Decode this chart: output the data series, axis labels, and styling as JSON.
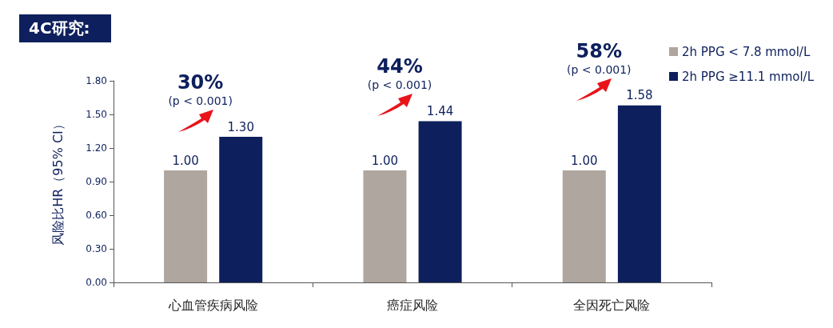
{
  "chart_data": {
    "type": "bar",
    "title": "4C研究:",
    "ylabel": "风险比HR（95% CI）",
    "categories": [
      "心血管疾病风险",
      "癌症风险",
      "全因死亡风险"
    ],
    "series": [
      {
        "name": "2h PPG < 7.8 mmol/L",
        "color": "#aea69f",
        "values": [
          1.0,
          1.0,
          1.0
        ],
        "value_labels": [
          "1.00",
          "1.00",
          "1.00"
        ]
      },
      {
        "name": "2h PPG ≥11.1 mmol/L",
        "color": "#0d1f5c",
        "values": [
          1.3,
          1.44,
          1.58
        ],
        "value_labels": [
          "1.30",
          "1.44",
          "1.58"
        ]
      }
    ],
    "ylim": [
      0,
      1.8
    ],
    "yticks": [
      {
        "value": 0,
        "label": "0.00"
      },
      {
        "value": 0.3,
        "label": "0.30"
      },
      {
        "value": 0.6,
        "label": "0.60"
      },
      {
        "value": 0.9,
        "label": "0.90"
      },
      {
        "value": 1.2,
        "label": "1.20"
      },
      {
        "value": 1.5,
        "label": "1.50"
      },
      {
        "value": 1.8,
        "label": "1.80"
      }
    ],
    "annotations": [
      "30%",
      "(p < 0.001)",
      "44%",
      "(p < 0.001)",
      "58%",
      "(p < 0.001)"
    ],
    "legend": "top right",
    "grid": false
  }
}
